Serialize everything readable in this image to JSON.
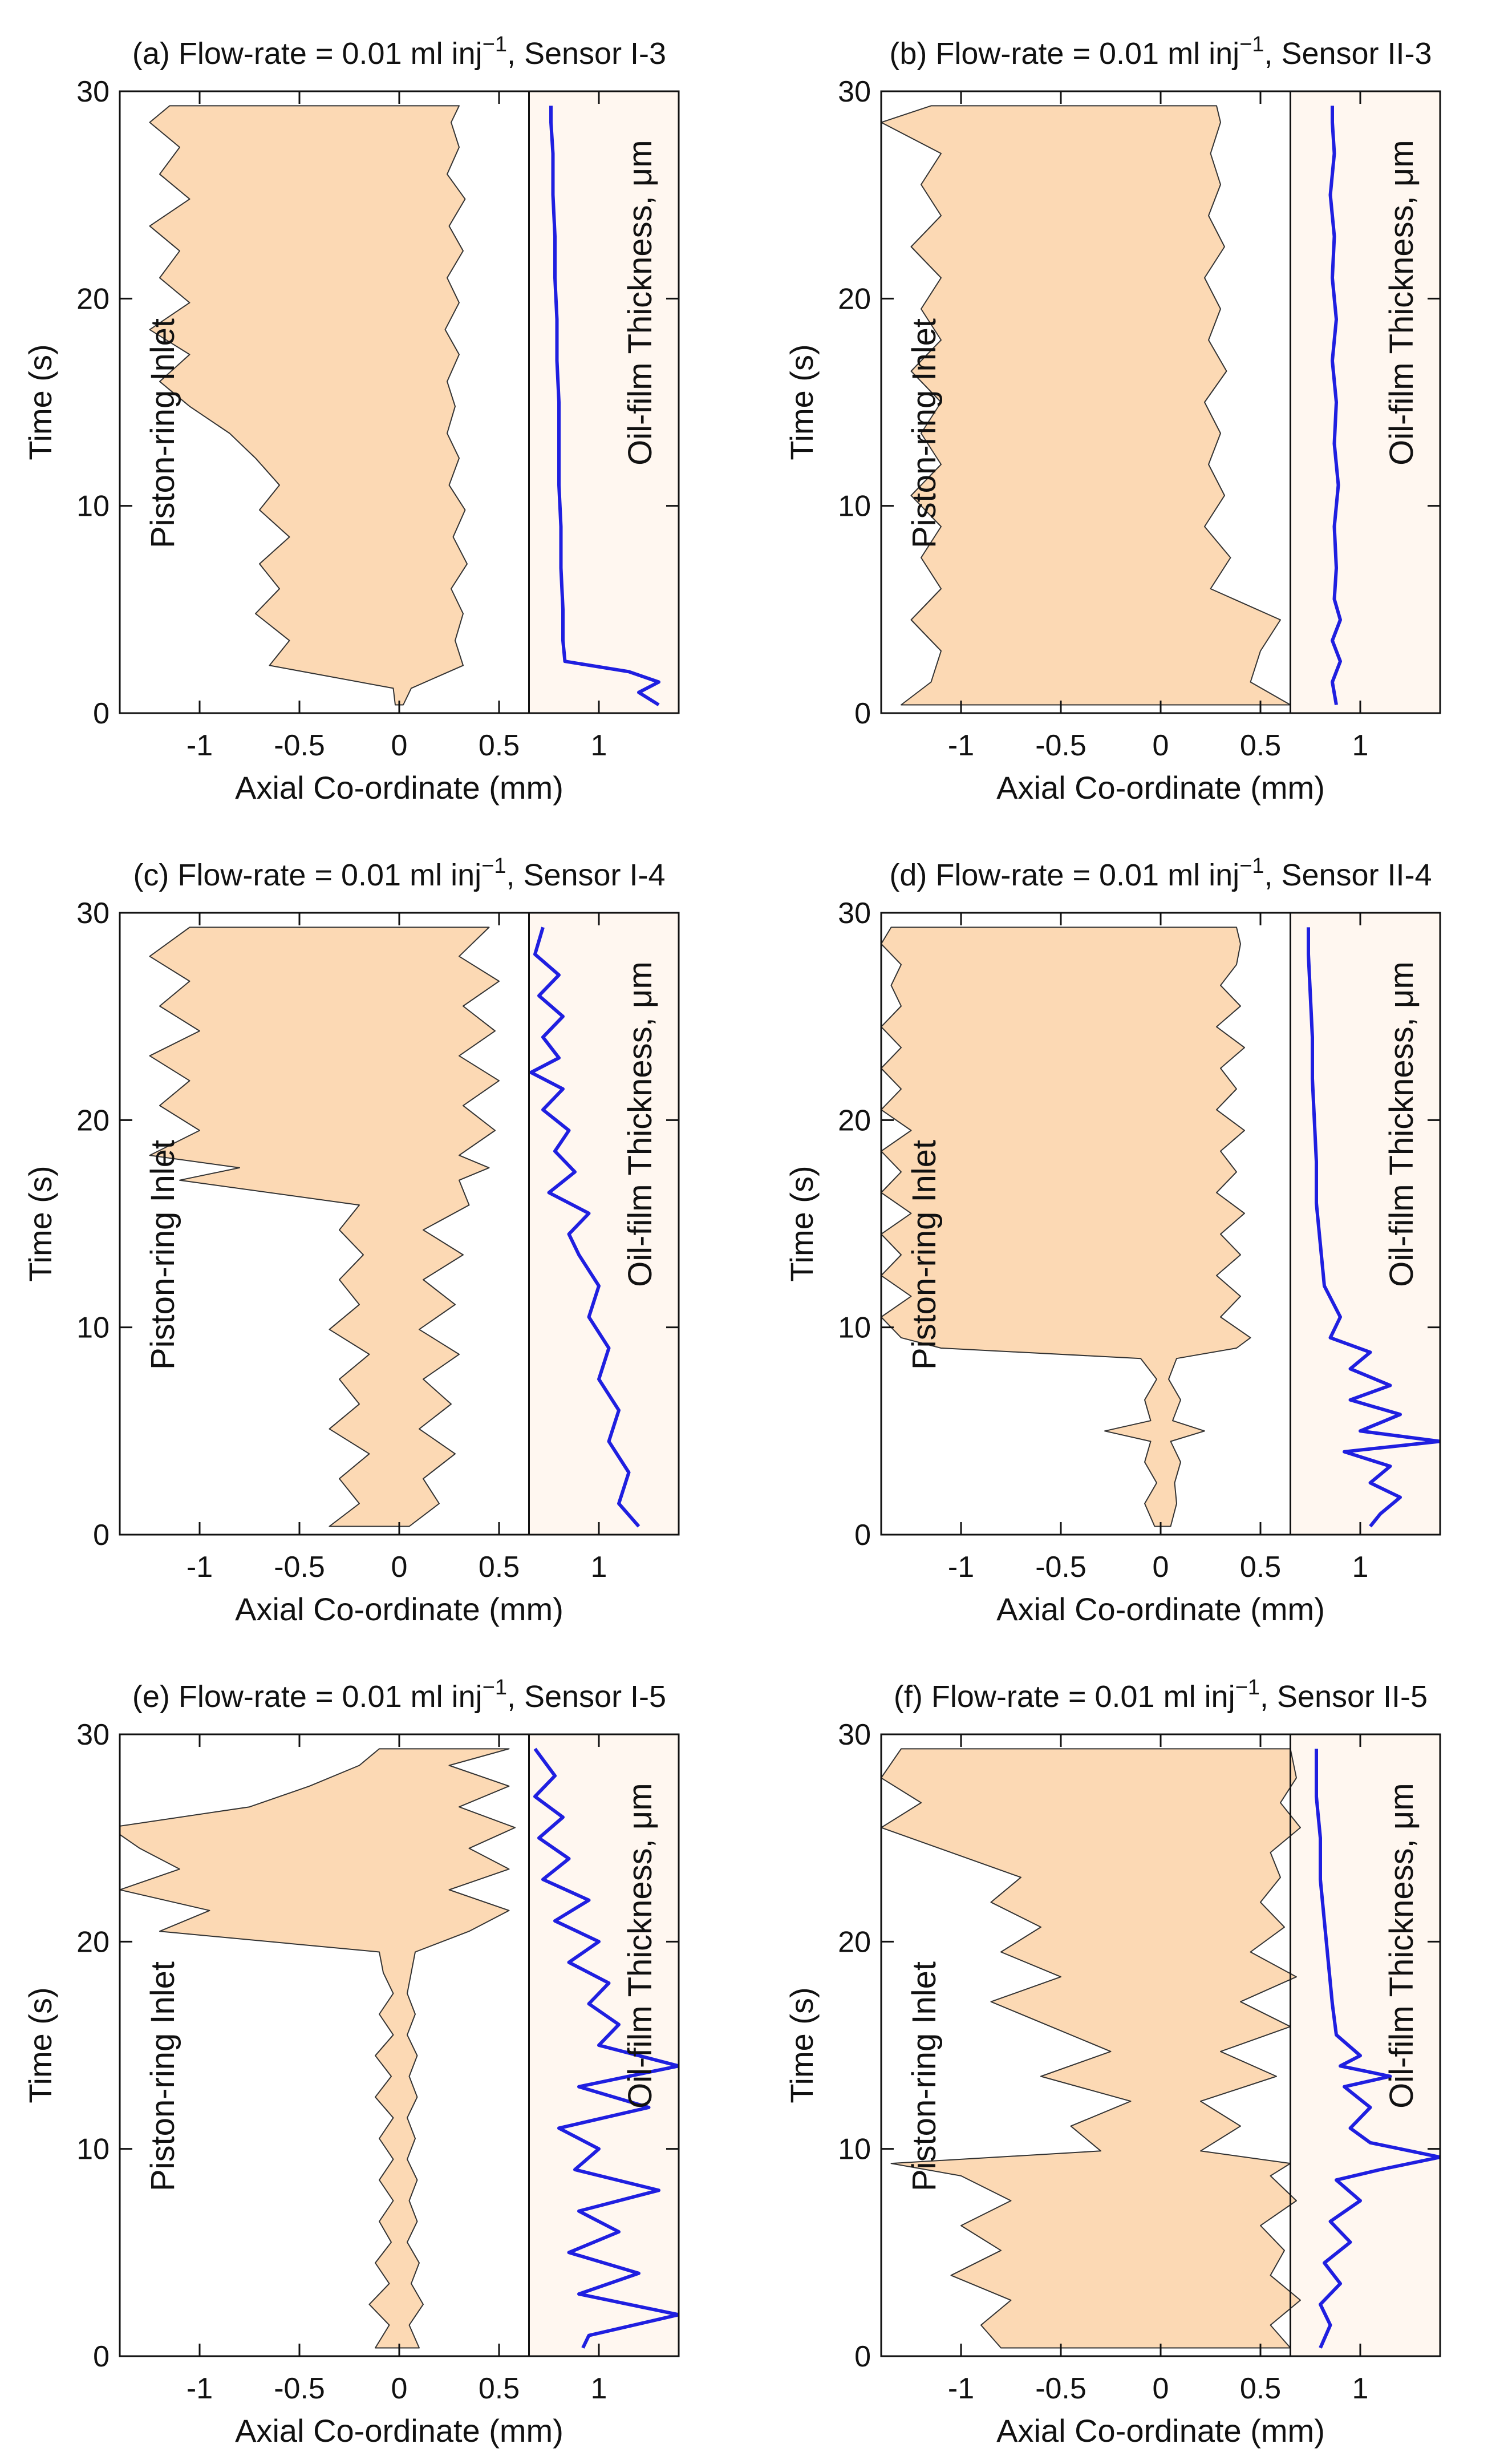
{
  "colors": {
    "band_fill": "#fcd9b4",
    "film_panel_fill": "#fff7f0",
    "film_line": "#1f1fe0"
  },
  "chart_data": [
    {
      "type": "area",
      "panel_id": "a",
      "title_prefix": "(a) Flow-rate = 0.01 ml inj",
      "title_exp": "−1",
      "title_suffix": ", Sensor I-3",
      "xlabel": "Axial Co-ordinate (mm)",
      "ylabel": "Time (s)",
      "inlet_label": "Piston-ring Inlet",
      "film_label": "Oil-film Thickness, μm",
      "xlim": [
        -1.4,
        1.4
      ],
      "ylim": [
        0,
        30
      ],
      "xticks": [
        -1,
        -0.5,
        0,
        0.5,
        1
      ],
      "xtick_labels": [
        "-1",
        "-0.5",
        "0",
        "0.5",
        "1"
      ],
      "yticks": [
        0,
        10,
        20,
        30
      ],
      "ytick_labels": [
        "0",
        "10",
        "20",
        "30"
      ],
      "divider_x": 0.65,
      "band": {
        "t": [
          0.4,
          1.2,
          2.3,
          3.5,
          4.8,
          6.0,
          7.2,
          8.5,
          9.8,
          11.0,
          12.3,
          13.5,
          14.8,
          16.0,
          17.3,
          18.5,
          19.8,
          21.0,
          22.3,
          23.5,
          24.8,
          26.0,
          27.3,
          28.5,
          29.3
        ],
        "left": [
          -0.02,
          -0.03,
          -0.65,
          -0.55,
          -0.72,
          -0.6,
          -0.7,
          -0.55,
          -0.7,
          -0.6,
          -0.72,
          -0.85,
          -1.05,
          -1.2,
          -1.05,
          -1.25,
          -1.05,
          -1.2,
          -1.1,
          -1.25,
          -1.05,
          -1.2,
          -1.1,
          -1.25,
          -1.15
        ],
        "right": [
          0.02,
          0.06,
          0.32,
          0.28,
          0.32,
          0.26,
          0.34,
          0.27,
          0.33,
          0.25,
          0.3,
          0.24,
          0.28,
          0.24,
          0.3,
          0.23,
          0.3,
          0.24,
          0.32,
          0.25,
          0.33,
          0.24,
          0.3,
          0.26,
          0.3
        ]
      },
      "film": {
        "t": [
          0.4,
          1.0,
          1.5,
          2.0,
          2.5,
          3.5,
          5,
          7,
          9,
          11,
          13,
          15,
          17,
          19,
          21,
          23,
          25,
          27,
          28.5,
          29.3
        ],
        "x": [
          1.3,
          1.2,
          1.3,
          1.15,
          0.83,
          0.82,
          0.82,
          0.81,
          0.81,
          0.8,
          0.8,
          0.8,
          0.79,
          0.79,
          0.78,
          0.78,
          0.77,
          0.77,
          0.76,
          0.76
        ]
      }
    },
    {
      "type": "area",
      "panel_id": "b",
      "title_prefix": "(b) Flow-rate = 0.01 ml inj",
      "title_exp": "−1",
      "title_suffix": ", Sensor II-3",
      "xlabel": "Axial Co-ordinate (mm)",
      "ylabel": "Time (s)",
      "inlet_label": "Piston-ring Inlet",
      "film_label": "Oil-film Thickness, μm",
      "xlim": [
        -1.4,
        1.4
      ],
      "ylim": [
        0,
        30
      ],
      "xticks": [
        -1,
        -0.5,
        0,
        0.5,
        1
      ],
      "xtick_labels": [
        "-1",
        "-0.5",
        "0",
        "0.5",
        "1"
      ],
      "yticks": [
        0,
        10,
        20,
        30
      ],
      "ytick_labels": [
        "0",
        "10",
        "20",
        "30"
      ],
      "divider_x": 0.65,
      "band": {
        "t": [
          0.4,
          1.5,
          3.0,
          4.5,
          6.0,
          7.5,
          9.0,
          10.5,
          12.0,
          13.5,
          15.0,
          16.5,
          18.0,
          19.5,
          21.0,
          22.5,
          24.0,
          25.5,
          27.0,
          28.5,
          29.3
        ],
        "left": [
          -1.3,
          -1.15,
          -1.1,
          -1.25,
          -1.1,
          -1.2,
          -1.1,
          -1.25,
          -1.1,
          -1.2,
          -1.1,
          -1.25,
          -1.1,
          -1.2,
          -1.1,
          -1.25,
          -1.1,
          -1.2,
          -1.1,
          -1.4,
          -1.15
        ],
        "right": [
          0.65,
          0.45,
          0.5,
          0.6,
          0.25,
          0.35,
          0.22,
          0.32,
          0.24,
          0.3,
          0.22,
          0.33,
          0.24,
          0.3,
          0.22,
          0.32,
          0.24,
          0.3,
          0.25,
          0.3,
          0.28
        ]
      },
      "film": {
        "t": [
          0.4,
          1.5,
          2.5,
          3.5,
          4.5,
          5.5,
          7,
          9,
          11,
          13,
          15,
          17,
          19,
          21,
          23,
          25,
          27,
          28.5,
          29.3
        ],
        "x": [
          0.88,
          0.86,
          0.9,
          0.86,
          0.9,
          0.87,
          0.88,
          0.87,
          0.89,
          0.87,
          0.88,
          0.86,
          0.88,
          0.86,
          0.87,
          0.85,
          0.87,
          0.86,
          0.86
        ]
      }
    },
    {
      "type": "area",
      "panel_id": "c",
      "title_prefix": "(c) Flow-rate = 0.01 ml inj",
      "title_exp": "−1",
      "title_suffix": ", Sensor I-4",
      "xlabel": "Axial Co-ordinate (mm)",
      "ylabel": "Time (s)",
      "inlet_label": "Piston-ring Inlet",
      "film_label": "Oil-film Thickness, μm",
      "xlim": [
        -1.4,
        1.4
      ],
      "ylim": [
        0,
        30
      ],
      "xticks": [
        -1,
        -0.5,
        0,
        0.5,
        1
      ],
      "xtick_labels": [
        "-1",
        "-0.5",
        "0",
        "0.5",
        "1"
      ],
      "yticks": [
        0,
        10,
        20,
        30
      ],
      "ytick_labels": [
        "0",
        "10",
        "20",
        "30"
      ],
      "divider_x": 0.65,
      "band": {
        "t": [
          0.4,
          1.5,
          2.7,
          3.9,
          5.1,
          6.3,
          7.5,
          8.7,
          9.9,
          11.1,
          12.3,
          13.5,
          14.7,
          15.9,
          17.1,
          17.7,
          18.3,
          19.5,
          20.7,
          21.9,
          23.1,
          24.3,
          25.5,
          26.7,
          27.9,
          29.3
        ],
        "left": [
          -0.35,
          -0.2,
          -0.3,
          -0.15,
          -0.35,
          -0.2,
          -0.3,
          -0.15,
          -0.35,
          -0.2,
          -0.3,
          -0.18,
          -0.3,
          -0.2,
          -1.1,
          -0.8,
          -1.25,
          -1.0,
          -1.2,
          -1.05,
          -1.25,
          -1.0,
          -1.2,
          -1.05,
          -1.25,
          -1.05
        ],
        "right": [
          0.05,
          0.2,
          0.12,
          0.28,
          0.1,
          0.26,
          0.12,
          0.3,
          0.1,
          0.28,
          0.12,
          0.32,
          0.12,
          0.35,
          0.3,
          0.45,
          0.3,
          0.48,
          0.32,
          0.5,
          0.3,
          0.48,
          0.32,
          0.5,
          0.3,
          0.45
        ]
      },
      "film": {
        "t": [
          0.4,
          1.5,
          3,
          4.5,
          6,
          7.5,
          9,
          10.5,
          12,
          13.5,
          14.5,
          15.5,
          16.5,
          17.5,
          18.5,
          19.5,
          20.5,
          21.5,
          22.3,
          23,
          24,
          25,
          26,
          27,
          28,
          29.3
        ],
        "x": [
          1.2,
          1.1,
          1.15,
          1.05,
          1.1,
          1.0,
          1.05,
          0.95,
          1.0,
          0.9,
          0.85,
          0.95,
          0.75,
          0.88,
          0.78,
          0.85,
          0.72,
          0.82,
          0.66,
          0.8,
          0.72,
          0.82,
          0.7,
          0.8,
          0.68,
          0.72
        ]
      }
    },
    {
      "type": "area",
      "panel_id": "d",
      "title_prefix": "(d) Flow-rate = 0.01 ml inj",
      "title_exp": "−1",
      "title_suffix": ", Sensor II-4",
      "xlabel": "Axial Co-ordinate (mm)",
      "ylabel": "Time (s)",
      "inlet_label": "Piston-ring Inlet",
      "film_label": "Oil-film Thickness, μm",
      "xlim": [
        -1.4,
        1.4
      ],
      "ylim": [
        0,
        30
      ],
      "xticks": [
        -1,
        -0.5,
        0,
        0.5,
        1
      ],
      "xtick_labels": [
        "-1",
        "-0.5",
        "0",
        "0.5",
        "1"
      ],
      "yticks": [
        0,
        10,
        20,
        30
      ],
      "ytick_labels": [
        "0",
        "10",
        "20",
        "30"
      ],
      "divider_x": 0.65,
      "band": {
        "t": [
          0.4,
          1.5,
          2.5,
          3.5,
          4.5,
          5.0,
          5.5,
          6.5,
          7.5,
          8.5,
          9.0,
          9.5,
          10.5,
          11.5,
          12.5,
          13.5,
          14.5,
          15.5,
          16.5,
          17.5,
          18.5,
          19.5,
          20.5,
          21.5,
          22.5,
          23.5,
          24.5,
          25.5,
          26.5,
          27.5,
          28.5,
          29.3
        ],
        "left": [
          -0.03,
          -0.08,
          -0.02,
          -0.08,
          -0.05,
          -0.28,
          -0.05,
          -0.08,
          -0.02,
          -0.1,
          -1.1,
          -1.3,
          -1.4,
          -1.25,
          -1.4,
          -1.3,
          -1.4,
          -1.25,
          -1.4,
          -1.3,
          -1.4,
          -1.25,
          -1.4,
          -1.3,
          -1.4,
          -1.3,
          -1.4,
          -1.3,
          -1.35,
          -1.3,
          -1.4,
          -1.35
        ],
        "right": [
          0.05,
          0.08,
          0.07,
          0.1,
          0.05,
          0.22,
          0.06,
          0.1,
          0.04,
          0.08,
          0.38,
          0.45,
          0.3,
          0.4,
          0.28,
          0.4,
          0.3,
          0.42,
          0.28,
          0.38,
          0.3,
          0.42,
          0.28,
          0.38,
          0.3,
          0.42,
          0.28,
          0.4,
          0.3,
          0.38,
          0.4,
          0.38
        ]
      },
      "film": {
        "t": [
          0.4,
          1.0,
          1.8,
          2.5,
          3.3,
          4.0,
          4.5,
          5.0,
          5.8,
          6.5,
          7.2,
          8.0,
          8.8,
          9.5,
          10.5,
          12,
          14,
          16,
          18,
          20,
          22,
          24,
          26,
          28,
          29.3
        ],
        "x": [
          1.05,
          1.1,
          1.2,
          1.05,
          1.15,
          0.92,
          1.4,
          1.0,
          1.2,
          0.95,
          1.15,
          0.95,
          1.05,
          0.85,
          0.9,
          0.82,
          0.8,
          0.78,
          0.78,
          0.77,
          0.76,
          0.76,
          0.75,
          0.74,
          0.74
        ]
      }
    },
    {
      "type": "area",
      "panel_id": "e",
      "title_prefix": "(e) Flow-rate = 0.01 ml inj",
      "title_exp": "−1",
      "title_suffix": ", Sensor I-5",
      "xlabel": "Axial Co-ordinate (mm)",
      "ylabel": "Time (s)",
      "inlet_label": "Piston-ring Inlet",
      "film_label": "Oil-film Thickness, μm",
      "xlim": [
        -1.4,
        1.4
      ],
      "ylim": [
        0,
        30
      ],
      "xticks": [
        -1,
        -0.5,
        0,
        0.5,
        1
      ],
      "xtick_labels": [
        "-1",
        "-0.5",
        "0",
        "0.5",
        "1"
      ],
      "yticks": [
        0,
        10,
        20,
        30
      ],
      "ytick_labels": [
        "0",
        "10",
        "20",
        "30"
      ],
      "divider_x": 0.65,
      "band": {
        "t": [
          0.4,
          1.5,
          2.5,
          3.5,
          4.5,
          5.5,
          6.5,
          7.5,
          8.5,
          9.5,
          10.5,
          11.5,
          12.5,
          13.5,
          14.5,
          15.5,
          16.5,
          17.5,
          18.5,
          19.5,
          20.5,
          21.5,
          22.5,
          23.5,
          24.5,
          25.5,
          26.5,
          27.5,
          28.5,
          29.3
        ],
        "left": [
          -0.12,
          -0.05,
          -0.15,
          -0.05,
          -0.12,
          -0.04,
          -0.1,
          -0.03,
          -0.1,
          -0.03,
          -0.1,
          -0.03,
          -0.12,
          -0.04,
          -0.12,
          -0.03,
          -0.1,
          -0.03,
          -0.08,
          -0.1,
          -1.2,
          -0.95,
          -1.4,
          -1.1,
          -1.3,
          -1.45,
          -0.75,
          -0.45,
          -0.2,
          -0.1
        ],
        "right": [
          0.1,
          0.05,
          0.12,
          0.06,
          0.1,
          0.04,
          0.09,
          0.05,
          0.09,
          0.04,
          0.08,
          0.04,
          0.09,
          0.05,
          0.09,
          0.04,
          0.08,
          0.04,
          0.06,
          0.08,
          0.35,
          0.55,
          0.25,
          0.55,
          0.35,
          0.58,
          0.3,
          0.55,
          0.25,
          0.55
        ]
      },
      "film": {
        "t": [
          0.4,
          1.0,
          2.0,
          3.0,
          4.0,
          5.0,
          6.0,
          7.0,
          8.0,
          9.0,
          10.0,
          11.0,
          12.0,
          13.0,
          14.0,
          15.0,
          16.0,
          17.0,
          18.0,
          19.0,
          20.0,
          21.0,
          22.0,
          23.0,
          24.0,
          25.0,
          26.0,
          27.0,
          28.0,
          29.3
        ],
        "x": [
          0.92,
          0.95,
          1.4,
          0.9,
          1.2,
          0.85,
          1.1,
          0.9,
          1.3,
          0.88,
          1.0,
          0.8,
          1.25,
          0.9,
          1.4,
          1.0,
          1.1,
          0.95,
          1.05,
          0.85,
          1.0,
          0.78,
          0.95,
          0.72,
          0.85,
          0.7,
          0.82,
          0.68,
          0.78,
          0.68
        ]
      }
    },
    {
      "type": "area",
      "panel_id": "f",
      "title_prefix": "(f) Flow-rate = 0.01 ml inj",
      "title_exp": "−1",
      "title_suffix": ", Sensor II-5",
      "xlabel": "Axial Co-ordinate (mm)",
      "ylabel": "Time (s)",
      "inlet_label": "Piston-ring Inlet",
      "film_label": "Oil-film Thickness, μm",
      "xlim": [
        -1.4,
        1.4
      ],
      "ylim": [
        0,
        30
      ],
      "xticks": [
        -1,
        -0.5,
        0,
        0.5,
        1
      ],
      "xtick_labels": [
        "-1",
        "-0.5",
        "0",
        "0.5",
        "1"
      ],
      "yticks": [
        0,
        10,
        20,
        30
      ],
      "ytick_labels": [
        "0",
        "10",
        "20",
        "30"
      ],
      "divider_x": 0.65,
      "band": {
        "t": [
          0.4,
          1.5,
          2.7,
          3.9,
          5.1,
          6.3,
          7.5,
          8.7,
          9.3,
          9.9,
          11.1,
          12.3,
          13.5,
          14.7,
          15.9,
          17.1,
          18.3,
          19.5,
          20.7,
          21.9,
          23.1,
          24.3,
          25.5,
          26.7,
          27.9,
          29.3
        ],
        "left": [
          -0.8,
          -0.9,
          -0.75,
          -1.05,
          -0.8,
          -1.0,
          -0.75,
          -1.0,
          -1.35,
          -0.3,
          -0.45,
          -0.15,
          -0.6,
          -0.25,
          -0.55,
          -0.85,
          -0.5,
          -0.8,
          -0.6,
          -0.85,
          -0.7,
          -1.05,
          -1.4,
          -1.2,
          -1.4,
          -1.3
        ],
        "right": [
          0.65,
          0.55,
          0.7,
          0.55,
          0.62,
          0.5,
          0.68,
          0.55,
          0.65,
          0.2,
          0.4,
          0.2,
          0.58,
          0.3,
          0.65,
          0.4,
          0.68,
          0.45,
          0.62,
          0.5,
          0.6,
          0.55,
          0.7,
          0.6,
          0.68,
          0.65
        ]
      },
      "film": {
        "t": [
          0.4,
          1.5,
          2.5,
          3.5,
          4.5,
          5.5,
          6.5,
          7.5,
          8.5,
          9.0,
          9.6,
          10.3,
          11.0,
          12.0,
          13.0,
          13.5,
          14.0,
          14.5,
          15.5,
          17,
          19,
          21,
          23,
          25,
          27,
          29.3
        ],
        "x": [
          0.8,
          0.85,
          0.8,
          0.9,
          0.82,
          0.95,
          0.85,
          1.0,
          0.88,
          1.1,
          1.4,
          1.05,
          0.95,
          1.05,
          0.92,
          1.15,
          0.9,
          1.0,
          0.88,
          0.86,
          0.84,
          0.82,
          0.8,
          0.8,
          0.78,
          0.78
        ]
      }
    }
  ]
}
